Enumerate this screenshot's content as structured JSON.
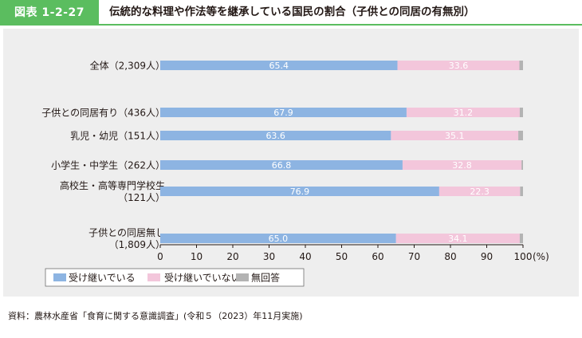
{
  "header": {
    "figure_number": "図表 1-2-27",
    "title": "伝統的な料理や作法等を継承している国民の割合（子供との同居の有無別）"
  },
  "source": "資料：農林水産省「食育に関する意識調査」(令和５（2023）年11月実施)",
  "colors": {
    "accent": "#5bbd5f",
    "panel_background": "#eeeeee",
    "series_inherit": "#8db4e2",
    "series_not_inherit": "#f3c6db",
    "series_no_answer": "#b3b3b3"
  },
  "chart_data": {
    "type": "bar",
    "orientation": "horizontal",
    "stacked": true,
    "categories": [
      [
        "全体（2,309人）"
      ],
      [
        "子供との同居有り（436人）"
      ],
      [
        "乳児・幼児（151人）"
      ],
      [
        "小学生・中学生（262人）"
      ],
      [
        "高校生・高等専門学校生",
        "（121人）"
      ],
      [
        "子供との同居無し",
        "（1,809人）"
      ]
    ],
    "series": [
      {
        "name": "受け継いでいる",
        "color": "#8db4e2",
        "values": [
          65.4,
          67.9,
          63.6,
          66.8,
          76.9,
          65.0
        ],
        "labels": [
          "65.4",
          "67.9",
          "63.6",
          "66.8",
          "76.9",
          "65.0"
        ]
      },
      {
        "name": "受け継いでいない",
        "color": "#f3c6db",
        "values": [
          33.6,
          31.2,
          35.1,
          32.8,
          22.3,
          34.1
        ],
        "labels": [
          "33.6",
          "31.2",
          "35.1",
          "32.8",
          "22.3",
          "34.1"
        ]
      },
      {
        "name": "無回答",
        "color": "#b3b3b3",
        "values": [
          1.0,
          0.9,
          1.3,
          0.4,
          0.8,
          0.9
        ]
      }
    ],
    "xlim": [
      0,
      100
    ],
    "xticks": [
      "0",
      "10",
      "20",
      "30",
      "40",
      "50",
      "60",
      "70",
      "80",
      "90",
      "100"
    ],
    "xunit": "(%)",
    "legend_position": "bottom-left"
  }
}
